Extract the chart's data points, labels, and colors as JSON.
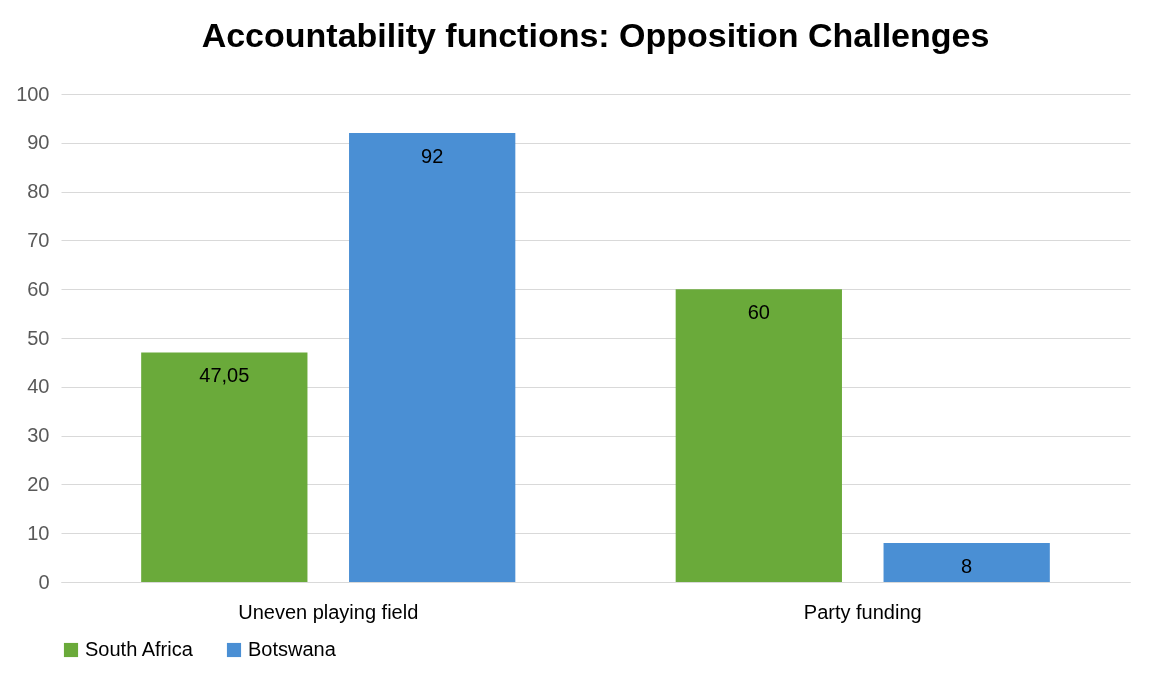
{
  "chart_data": {
    "type": "bar",
    "title": "Accountability functions: Opposition Challenges",
    "categories": [
      "Uneven playing field",
      "Party funding"
    ],
    "series": [
      {
        "name": "South Africa",
        "color": "#6aaa3a",
        "values": [
          47.05,
          60
        ],
        "value_labels": [
          "47,05",
          "60"
        ]
      },
      {
        "name": "Botswana",
        "color": "#4a8fd4",
        "values": [
          92,
          8
        ],
        "value_labels": [
          "92",
          "8"
        ]
      }
    ],
    "ylim": [
      0,
      100
    ],
    "yticks": [
      0,
      10,
      20,
      30,
      40,
      50,
      60,
      70,
      80,
      90,
      100
    ],
    "grid": "y",
    "legend": "bottom"
  }
}
